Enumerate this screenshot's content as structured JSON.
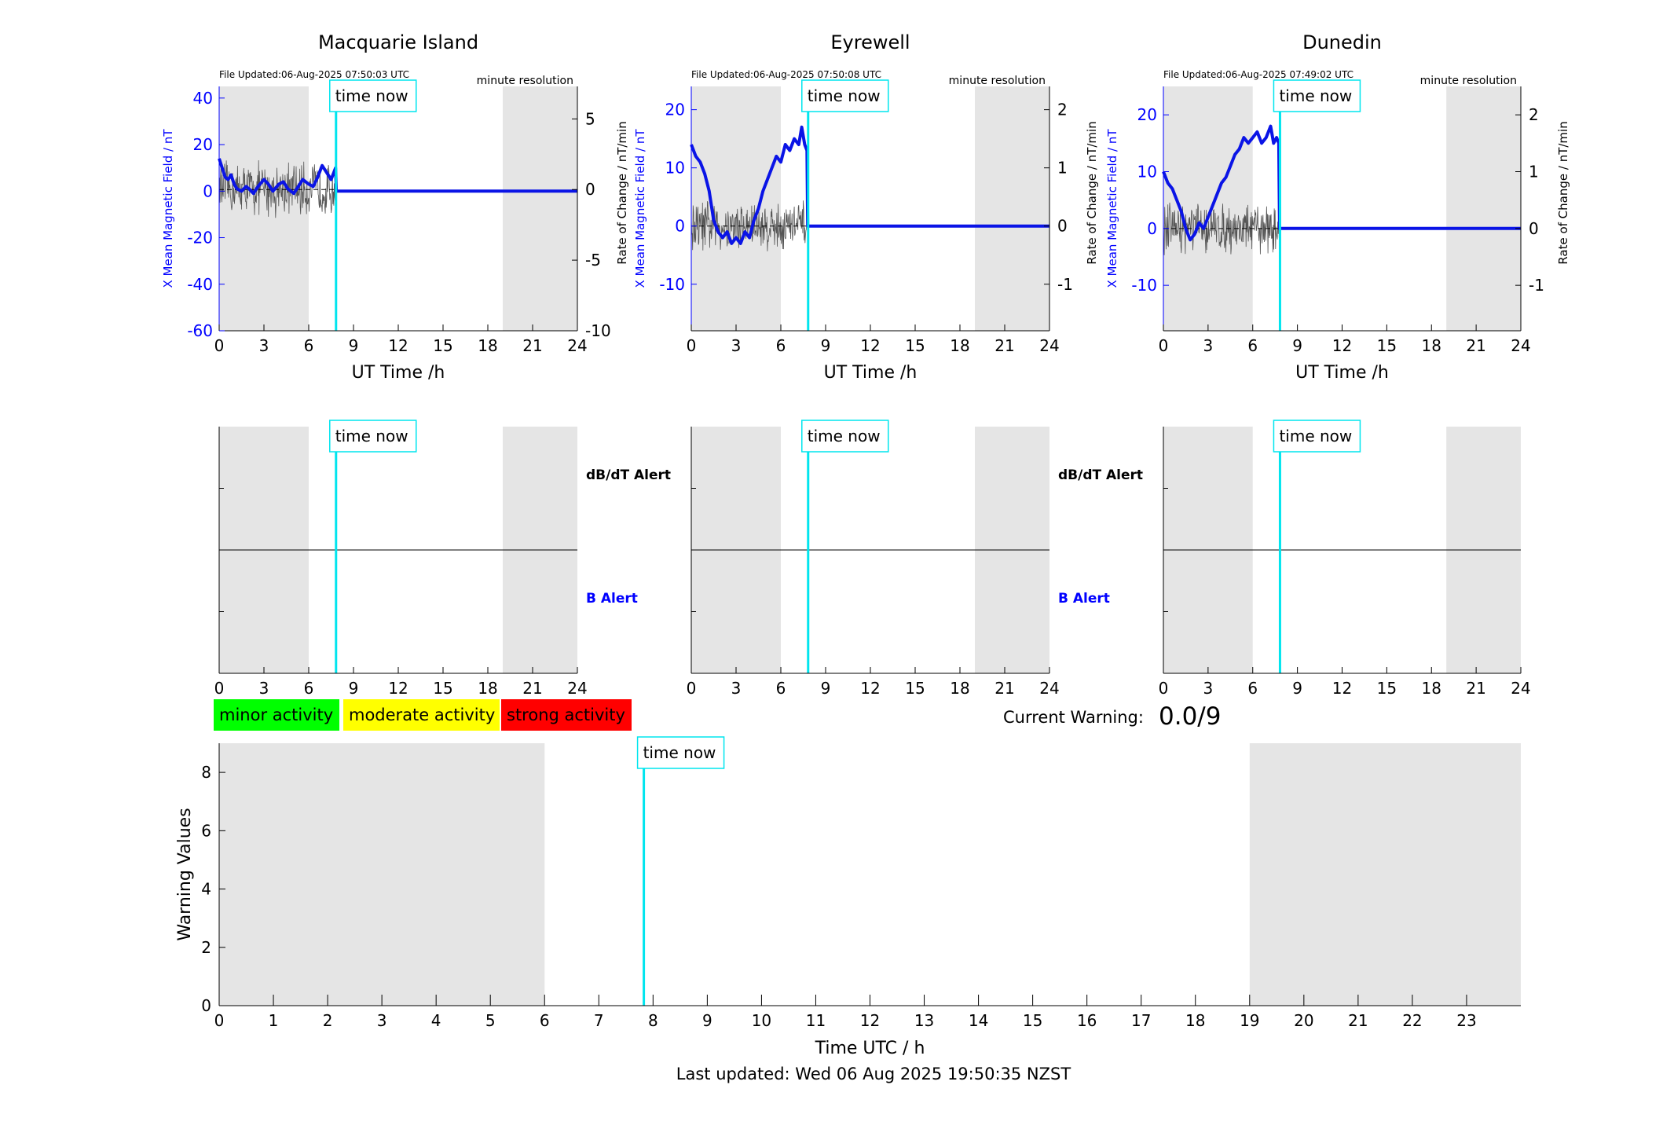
{
  "time_now_label": "time now",
  "time_now_hour": 7.83,
  "night_shading_hours": [
    [
      0,
      6
    ],
    [
      19,
      24
    ]
  ],
  "colors": {
    "field_line": "#0a14e6",
    "rate_line": "#555555",
    "time_now": "#00e5ee",
    "night_shade": "#e5e5e5",
    "axis": "#000000",
    "left_axis": "#0000ff"
  },
  "stations": [
    {
      "title": "Macquarie Island",
      "file_updated": "File Updated:06-Aug-2025 07:50:03 UTC",
      "resolution": "minute resolution",
      "dbdt_label": "dB/dT Alert",
      "b_label": "B Alert",
      "show_alert_labels": true
    },
    {
      "title": "Eyrewell",
      "file_updated": "File Updated:06-Aug-2025 07:50:08 UTC",
      "resolution": "minute resolution",
      "dbdt_label": "dB/dT Alert",
      "b_label": "B Alert",
      "show_alert_labels": true
    },
    {
      "title": "Dunedin",
      "file_updated": "File Updated:06-Aug-2025 07:49:02 UTC",
      "resolution": "minute resolution",
      "dbdt_label": "dB/dT Alert",
      "b_label": "B Alert",
      "show_alert_labels": false
    }
  ],
  "legend": {
    "minor": {
      "label": "minor activity",
      "color": "#00ff00"
    },
    "moderate": {
      "label": "moderate activity",
      "color": "#ffff00"
    },
    "strong": {
      "label": "strong activity",
      "color": "#ff0000"
    }
  },
  "current_warning": {
    "label": "Current Warning:",
    "value": "0.0/9"
  },
  "last_updated": "Last updated: Wed 06 Aug 2025 19:50:35 NZST",
  "chart_data": [
    {
      "type": "line",
      "title": "Macquarie Island",
      "xlabel": "UT Time /h",
      "ylabel_left": "X Mean Magnetic Field / nT",
      "ylabel_right": "",
      "xlim": [
        0,
        24
      ],
      "xticks": [
        0,
        3,
        6,
        9,
        12,
        15,
        18,
        21,
        24
      ],
      "ylim_left": [
        -60,
        45
      ],
      "yticks_left": [
        -60,
        -40,
        -20,
        0,
        20,
        40
      ],
      "ylim_right": [
        -10,
        7.3
      ],
      "yticks_right": [
        -10,
        -5,
        0,
        5
      ],
      "series": [
        {
          "name": "X Mean Magnetic Field",
          "axis": "left",
          "x": [
            0,
            0.2,
            0.4,
            0.6,
            0.8,
            1,
            1.2,
            1.5,
            1.8,
            2,
            2.3,
            2.6,
            3,
            3.3,
            3.6,
            4,
            4.3,
            4.6,
            5,
            5.3,
            5.6,
            6,
            6.3,
            6.6,
            6.9,
            7.2,
            7.5,
            7.8,
            7.85,
            8,
            12,
            16,
            20,
            24
          ],
          "y": [
            14,
            10,
            6,
            5,
            7,
            3,
            1,
            0,
            2,
            1,
            -1,
            2,
            5,
            3,
            0,
            3,
            4,
            1,
            -1,
            2,
            5,
            3,
            2,
            6,
            11,
            8,
            5,
            10,
            0,
            0,
            0,
            0,
            0,
            0
          ]
        }
      ],
      "rate_noise_amplitude": 2.2
    },
    {
      "type": "line",
      "title": "Eyrewell",
      "xlabel": "UT Time /h",
      "ylabel_left": "X Mean Magnetic Field / nT",
      "ylabel_right": "Rate of Change / nT/min",
      "xlim": [
        0,
        24
      ],
      "xticks": [
        0,
        3,
        6,
        9,
        12,
        15,
        18,
        21,
        24
      ],
      "ylim_left": [
        -18,
        24
      ],
      "yticks_left": [
        -10,
        0,
        10,
        20
      ],
      "ylim_right": [
        -1.8,
        2.4
      ],
      "yticks_right": [
        -1,
        0,
        1,
        2
      ],
      "series": [
        {
          "name": "X Mean Magnetic Field",
          "axis": "left",
          "x": [
            0,
            0.3,
            0.6,
            0.9,
            1.2,
            1.5,
            1.8,
            2.1,
            2.4,
            2.7,
            3,
            3.3,
            3.6,
            3.9,
            4.2,
            4.5,
            4.8,
            5.1,
            5.4,
            5.7,
            6,
            6.3,
            6.6,
            6.9,
            7.2,
            7.4,
            7.6,
            7.75,
            7.8,
            8,
            12,
            16,
            20,
            24
          ],
          "y": [
            14,
            12,
            11,
            9,
            6,
            1,
            -1,
            -2,
            -1,
            -3,
            -2,
            -3,
            -1,
            -2,
            1,
            3,
            6,
            8,
            10,
            12,
            11,
            14,
            13,
            15,
            14,
            17,
            14,
            13,
            0,
            0,
            0,
            0,
            0,
            0
          ]
        }
      ],
      "rate_noise_amplitude": 0.5
    },
    {
      "type": "line",
      "title": "Dunedin",
      "xlabel": "UT Time /h",
      "ylabel_left": "X Mean Magnetic Field / nT",
      "ylabel_right": "Rate of Change / nT/min",
      "xlim": [
        0,
        24
      ],
      "xticks": [
        0,
        3,
        6,
        9,
        12,
        15,
        18,
        21,
        24
      ],
      "ylim_left": [
        -18,
        25
      ],
      "yticks_left": [
        -10,
        0,
        10,
        20
      ],
      "ylim_right": [
        -1.8,
        2.5
      ],
      "yticks_right": [
        -1,
        0,
        1,
        2
      ],
      "series": [
        {
          "name": "X Mean Magnetic Field",
          "axis": "left",
          "x": [
            0,
            0.3,
            0.6,
            0.9,
            1.2,
            1.5,
            1.8,
            2.1,
            2.4,
            2.7,
            3,
            3.3,
            3.6,
            3.9,
            4.2,
            4.5,
            4.8,
            5.1,
            5.4,
            5.7,
            6,
            6.3,
            6.6,
            6.9,
            7.2,
            7.4,
            7.6,
            7.75,
            7.8,
            8,
            12,
            16,
            20,
            24
          ],
          "y": [
            10,
            8,
            7,
            5,
            3,
            0,
            -2,
            -1,
            1,
            0,
            2,
            4,
            6,
            8,
            9,
            11,
            13,
            14,
            16,
            15,
            16,
            17,
            15,
            16,
            18,
            15,
            16,
            15,
            0,
            0,
            0,
            0,
            0,
            0
          ]
        }
      ],
      "rate_noise_amplitude": 0.5
    },
    {
      "type": "line",
      "title": "",
      "xlim": [
        0,
        24
      ],
      "xticks": [
        0,
        3,
        6,
        9,
        12,
        15,
        18,
        21,
        24
      ],
      "alert_levels": [],
      "series": []
    },
    {
      "type": "line",
      "title": "",
      "xlim": [
        0,
        24
      ],
      "xticks": [
        0,
        3,
        6,
        9,
        12,
        15,
        18,
        21,
        24
      ],
      "alert_levels": [],
      "series": []
    },
    {
      "type": "line",
      "title": "",
      "xlim": [
        0,
        24
      ],
      "xticks": [
        0,
        3,
        6,
        9,
        12,
        15,
        18,
        21,
        24
      ],
      "alert_levels": [],
      "series": []
    },
    {
      "type": "line",
      "title": "",
      "xlabel": "Time UTC / h",
      "ylabel": "Warning Values",
      "xlim": [
        0,
        24
      ],
      "xticks": [
        0,
        1,
        2,
        3,
        4,
        5,
        6,
        7,
        8,
        9,
        10,
        11,
        12,
        13,
        14,
        15,
        16,
        17,
        18,
        19,
        20,
        21,
        22,
        23
      ],
      "ylim": [
        0,
        9
      ],
      "yticks": [
        0,
        2,
        4,
        6,
        8
      ],
      "series": []
    }
  ]
}
